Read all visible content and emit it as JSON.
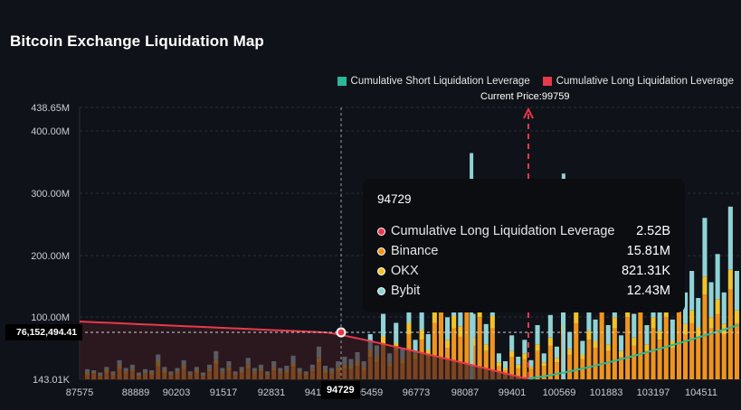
{
  "title": "Bitcoin Exchange Liquidation Map",
  "legend": {
    "short_label": "Cumulative Short Liquidation Leverage",
    "long_label": "Cumulative Long Liquidation Leverage",
    "short_color": "#2bb89a",
    "long_color": "#e8394a"
  },
  "current_price_label": "Current Price:99759",
  "crosshair": {
    "y_value_label": "76,152,494.41",
    "x_value_label": "94729"
  },
  "tooltip": {
    "title": "94729",
    "rows": [
      {
        "name": "Cumulative Long Liquidation Leverage",
        "value": "2.52B",
        "color": "#e8394a"
      },
      {
        "name": "Binance",
        "value": "15.81M",
        "color": "#f0941e"
      },
      {
        "name": "OKX",
        "value": "821.31K",
        "color": "#f2c22a"
      },
      {
        "name": "Bybit",
        "value": "12.43M",
        "color": "#8fd3d6"
      }
    ]
  },
  "chart_data": {
    "type": "bar",
    "title": "Bitcoin Exchange Liquidation Map",
    "y_ticks": [
      "438.65M",
      "400.00M",
      "300.00M",
      "200.00M",
      "100.00M",
      "143.01K"
    ],
    "ylim": [
      143010,
      438650000
    ],
    "x_ticks": [
      "87575",
      "88889",
      "90203",
      "91517",
      "92831",
      "94145",
      "95459",
      "96773",
      "98087",
      "99401",
      "100569",
      "101883",
      "103197",
      "104511"
    ],
    "xlim": [
      87575,
      105400
    ],
    "current_price": 99759,
    "colors": {
      "binance": "#f0941e",
      "okx": "#f2c22a",
      "bybit": "#8fd3d6"
    },
    "series": [
      {
        "name": "Binance",
        "values": [
          4,
          5,
          3,
          6,
          4,
          9,
          5,
          7,
          3,
          5,
          4,
          12,
          6,
          4,
          5,
          9,
          4,
          6,
          3,
          7,
          14,
          5,
          8,
          4,
          6,
          10,
          5,
          7,
          4,
          8,
          5,
          6,
          11,
          5,
          4,
          7,
          15,
          6,
          5,
          8,
          10,
          9,
          12,
          8,
          20,
          15,
          30,
          11,
          25,
          14,
          40,
          18,
          35,
          20,
          50,
          60,
          28,
          45,
          38,
          70,
          30,
          55,
          25,
          45,
          12,
          8,
          20,
          10,
          18,
          9,
          25,
          12,
          30,
          15,
          40,
          22,
          50,
          18,
          35,
          28,
          60,
          25,
          45,
          20,
          55,
          30,
          70,
          25,
          45,
          35,
          55,
          28,
          65,
          40,
          50,
          38,
          75,
          45,
          58,
          40,
          80,
          50
        ]
      },
      {
        "name": "OKX",
        "values": [
          2,
          1,
          1,
          2,
          1,
          3,
          2,
          2,
          1,
          1,
          2,
          4,
          2,
          1,
          2,
          3,
          1,
          2,
          1,
          2,
          3,
          2,
          3,
          1,
          2,
          3,
          2,
          2,
          1,
          3,
          2,
          2,
          3,
          2,
          1,
          2,
          4,
          2,
          2,
          3,
          3,
          3,
          4,
          3,
          6,
          5,
          8,
          4,
          7,
          4,
          10,
          5,
          9,
          6,
          12,
          15,
          7,
          11,
          9,
          16,
          7,
          13,
          6,
          11,
          3,
          2,
          5,
          3,
          5,
          2,
          6,
          3,
          7,
          4,
          9,
          5,
          11,
          4,
          8,
          6,
          13,
          6,
          10,
          5,
          12,
          7,
          15,
          6,
          10,
          8,
          12,
          6,
          14,
          9,
          11,
          8,
          16,
          10,
          13,
          9,
          17,
          11
        ]
      },
      {
        "name": "Bybit",
        "values": [
          3,
          2,
          2,
          3,
          2,
          5,
          3,
          4,
          2,
          3,
          2,
          6,
          3,
          2,
          3,
          5,
          2,
          3,
          2,
          4,
          8,
          3,
          5,
          2,
          3,
          6,
          3,
          4,
          2,
          5,
          3,
          4,
          7,
          3,
          2,
          4,
          10,
          4,
          3,
          5,
          7,
          6,
          8,
          5,
          14,
          10,
          20,
          8,
          18,
          10,
          28,
          12,
          25,
          14,
          35,
          42,
          20,
          32,
          27,
          50,
          21,
          38,
          18,
          32,
          8,
          6,
          14,
          7,
          12,
          6,
          17,
          8,
          20,
          10,
          28,
          15,
          35,
          12,
          24,
          19,
          42,
          17,
          31,
          14,
          38,
          21,
          49,
          17,
          31,
          24,
          38,
          19,
          45,
          28,
          35,
          26,
          52,
          31,
          40,
          28,
          56,
          35
        ]
      }
    ],
    "spikes": [
      {
        "x": 98087,
        "value": 365000000
      },
      {
        "x": 100569,
        "value": 332000000
      }
    ]
  }
}
